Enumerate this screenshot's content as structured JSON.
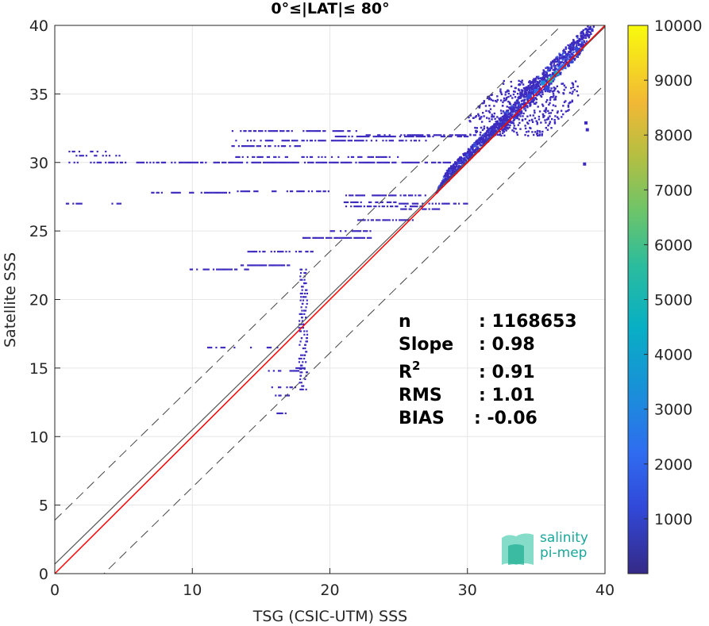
{
  "chart_data": {
    "type": "heatmap",
    "title": "0°≤|LAT|≤ 80°",
    "xlabel": "TSG (CSIC-UTM) SSS",
    "ylabel": "Satellite SSS",
    "xlim": [
      0,
      40
    ],
    "ylim": [
      0,
      40
    ],
    "xticks": [
      "0",
      "10",
      "20",
      "30",
      "40"
    ],
    "yticks": [
      "0",
      "5",
      "10",
      "15",
      "20",
      "25",
      "30",
      "35",
      "40"
    ],
    "grid": true,
    "colorbar": {
      "range": [
        0,
        10000
      ],
      "ticks": [
        "1000",
        "2000",
        "3000",
        "4000",
        "5000",
        "6000",
        "7000",
        "8000",
        "9000",
        "10000"
      ]
    },
    "fit_line": {
      "slope": 0.98,
      "intercept": 0.7
    },
    "identity_line": {
      "slope": 1,
      "intercept": 0
    },
    "rms_bounds": {
      "offset": 3.2
    },
    "colors": {
      "fit": "#555555",
      "identity": "#ff0000",
      "bounds": "#444444",
      "low_density": "#3d2bbf"
    },
    "stats": [
      {
        "label": "n",
        "value": ": 1168653"
      },
      {
        "label": "Slope",
        "value": ": 0.98"
      },
      {
        "label": "R",
        "sup": "2",
        "value": ": 0.91"
      },
      {
        "label": "RMS",
        "value": ": 1.01"
      },
      {
        "label": "BIAS",
        "value": ": -0.06"
      }
    ],
    "density_cells": [
      {
        "x": 36,
        "y": 36,
        "v": 6000
      },
      {
        "x": 36.5,
        "y": 36.5,
        "v": 5000
      },
      {
        "x": 35.5,
        "y": 35.8,
        "v": 4200
      },
      {
        "x": 36.2,
        "y": 36.2,
        "v": 3800
      },
      {
        "x": 37,
        "y": 37,
        "v": 3200
      },
      {
        "x": 35,
        "y": 35.2,
        "v": 2600
      },
      {
        "x": 37.5,
        "y": 37.4,
        "v": 2200
      },
      {
        "x": 34.5,
        "y": 34.8,
        "v": 1800
      },
      {
        "x": 36.8,
        "y": 36.9,
        "v": 2600
      },
      {
        "x": 35.8,
        "y": 35.4,
        "v": 2000
      },
      {
        "x": 38,
        "y": 38.2,
        "v": 1500
      }
    ]
  },
  "logo": {
    "line1": "salinity",
    "line2": "pi-mep"
  }
}
